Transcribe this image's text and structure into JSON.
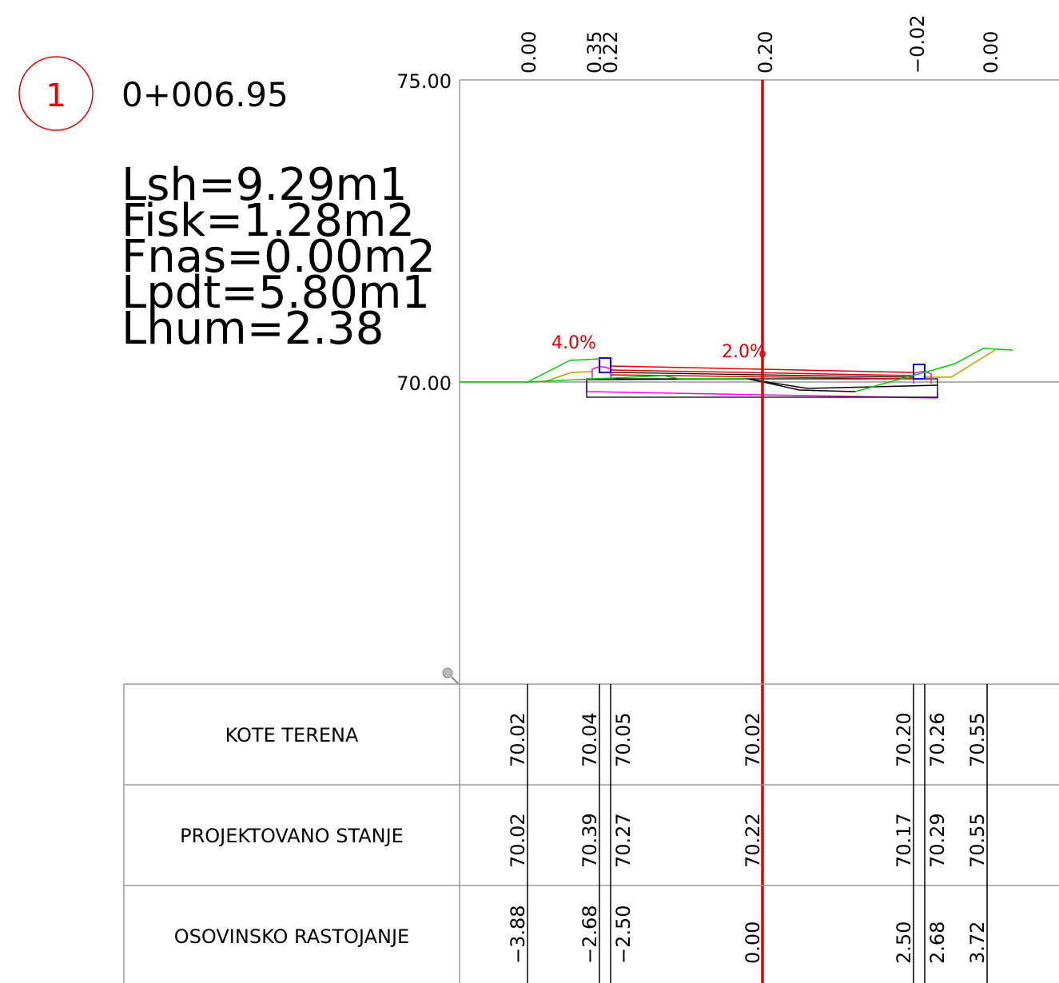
{
  "section": {
    "number": "1",
    "station": "0+006.95"
  },
  "quantities": [
    "Lsh=9.29m1",
    "Fisk=1.28m2",
    "Fnas=0.00m2",
    "Lpdt=5.80m1",
    "Lhum=2.38"
  ],
  "elevation_labels": {
    "top": "75.00",
    "middle": "70.00"
  },
  "top_offsets": [
    {
      "label": "0.00",
      "offset": -3.88
    },
    {
      "label": "0.35",
      "offset": -2.68
    },
    {
      "label": "0.22",
      "offset": -2.5
    },
    {
      "label": "0.20",
      "offset": 0.0
    },
    {
      "label": "−0.02",
      "offset": 2.5
    },
    {
      "label": "0.00",
      "offset": 3.72
    }
  ],
  "slopes": [
    {
      "label": "4.0%",
      "side": "left"
    },
    {
      "label": "2.0%",
      "side": "centre"
    }
  ],
  "table": {
    "rows": [
      {
        "title": "KOTE TERENA",
        "values": [
          "70.02",
          "70.04",
          "70.05",
          "70.02",
          "70.20",
          "70.26",
          "70.55"
        ]
      },
      {
        "title": "PROJEKTOVANO STANJE",
        "values": [
          "70.02",
          "70.39",
          "70.27",
          "70.22",
          "70.17",
          "70.29",
          "70.55"
        ]
      },
      {
        "title": "OSOVINSKO RASTOJANJE",
        "values": [
          "−3.88",
          "−2.68",
          "−2.50",
          "0.00",
          "2.50",
          "2.68",
          "3.72"
        ]
      }
    ]
  },
  "colors": {
    "axis": "#e00000",
    "terrain": "#00cc00",
    "subgrade": "#cc9900",
    "pavement": "#e00000",
    "trench": "#ff00ff",
    "curb": "#0000ff",
    "structure": "#000000",
    "grid": "#999999"
  }
}
